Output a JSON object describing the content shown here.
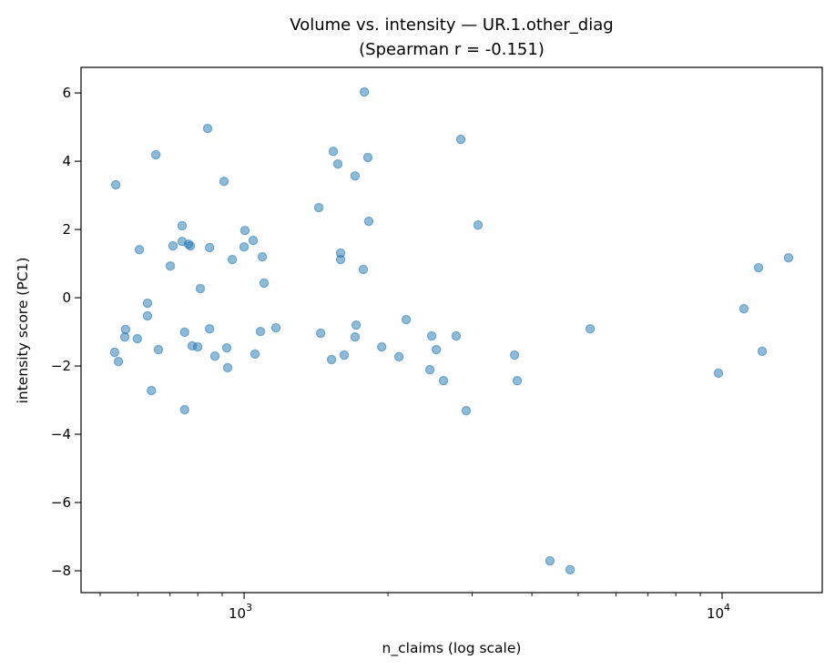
{
  "chart_data": {
    "type": "scatter",
    "title": "Volume vs. intensity — UR.1.other_diag",
    "subtitle": "(Spearman r = -0.151)",
    "xlabel": "n_claims (log scale)",
    "ylabel": "intensity score (PC1)",
    "xscale": "log",
    "xlim": [
      456,
      16200
    ],
    "ylim": [
      -8.64,
      6.75
    ],
    "xticks": [
      {
        "value": 1000,
        "base": "10",
        "exp": "3"
      },
      {
        "value": 10000,
        "base": "10",
        "exp": "4"
      }
    ],
    "yticks": [
      6,
      4,
      2,
      0,
      -2,
      -4,
      -6,
      -8
    ],
    "ytick_labels": [
      "6",
      "4",
      "2",
      "0",
      "−2",
      "−4",
      "−6",
      "−8"
    ],
    "grid": false,
    "marker_color": "#1f77b4",
    "marker_alpha": 0.5,
    "points": [
      [
        539,
        3.31
      ],
      [
        536,
        -1.6
      ],
      [
        546,
        -1.87
      ],
      [
        563,
        -1.15
      ],
      [
        565,
        -0.93
      ],
      [
        598,
        -1.2
      ],
      [
        604,
        1.41
      ],
      [
        628,
        -0.16
      ],
      [
        628,
        -0.53
      ],
      [
        640,
        -2.72
      ],
      [
        654,
        4.19
      ],
      [
        662,
        -1.52
      ],
      [
        701,
        0.93
      ],
      [
        710,
        1.52
      ],
      [
        742,
        2.11
      ],
      [
        742,
        1.65
      ],
      [
        751,
        -1.01
      ],
      [
        751,
        -3.28
      ],
      [
        765,
        1.57
      ],
      [
        772,
        1.52
      ],
      [
        779,
        -1.41
      ],
      [
        800,
        -1.44
      ],
      [
        810,
        0.27
      ],
      [
        839,
        4.96
      ],
      [
        847,
        1.47
      ],
      [
        847,
        -0.91
      ],
      [
        869,
        -1.71
      ],
      [
        908,
        3.41
      ],
      [
        920,
        -1.47
      ],
      [
        924,
        -2.05
      ],
      [
        945,
        1.12
      ],
      [
        1000,
        1.49
      ],
      [
        1004,
        1.97
      ],
      [
        1045,
        1.68
      ],
      [
        1054,
        -1.65
      ],
      [
        1082,
        -0.99
      ],
      [
        1092,
        1.2
      ],
      [
        1101,
        0.43
      ],
      [
        1166,
        -0.88
      ],
      [
        1433,
        2.64
      ],
      [
        1446,
        -1.04
      ],
      [
        1524,
        -1.81
      ],
      [
        1537,
        4.29
      ],
      [
        1571,
        3.92
      ],
      [
        1592,
        1.31
      ],
      [
        1592,
        1.12
      ],
      [
        1620,
        -1.68
      ],
      [
        1707,
        3.57
      ],
      [
        1707,
        -1.15
      ],
      [
        1716,
        -0.8
      ],
      [
        1776,
        0.83
      ],
      [
        1785,
        6.03
      ],
      [
        1815,
        4.11
      ],
      [
        1823,
        2.24
      ],
      [
        1941,
        -1.44
      ],
      [
        2109,
        -1.73
      ],
      [
        2184,
        -0.64
      ],
      [
        2447,
        -2.11
      ],
      [
        2469,
        -1.12
      ],
      [
        2525,
        -1.52
      ],
      [
        2613,
        -2.43
      ],
      [
        2778,
        -1.12
      ],
      [
        2840,
        4.64
      ],
      [
        2915,
        -3.31
      ],
      [
        3087,
        2.13
      ],
      [
        3680,
        -1.68
      ],
      [
        3727,
        -2.43
      ],
      [
        4364,
        -7.71
      ],
      [
        4808,
        -7.97
      ],
      [
        5296,
        -0.91
      ],
      [
        9825,
        -2.21
      ],
      [
        11110,
        -0.32
      ],
      [
        11920,
        0.88
      ],
      [
        12130,
        -1.57
      ],
      [
        13770,
        1.17
      ]
    ]
  }
}
